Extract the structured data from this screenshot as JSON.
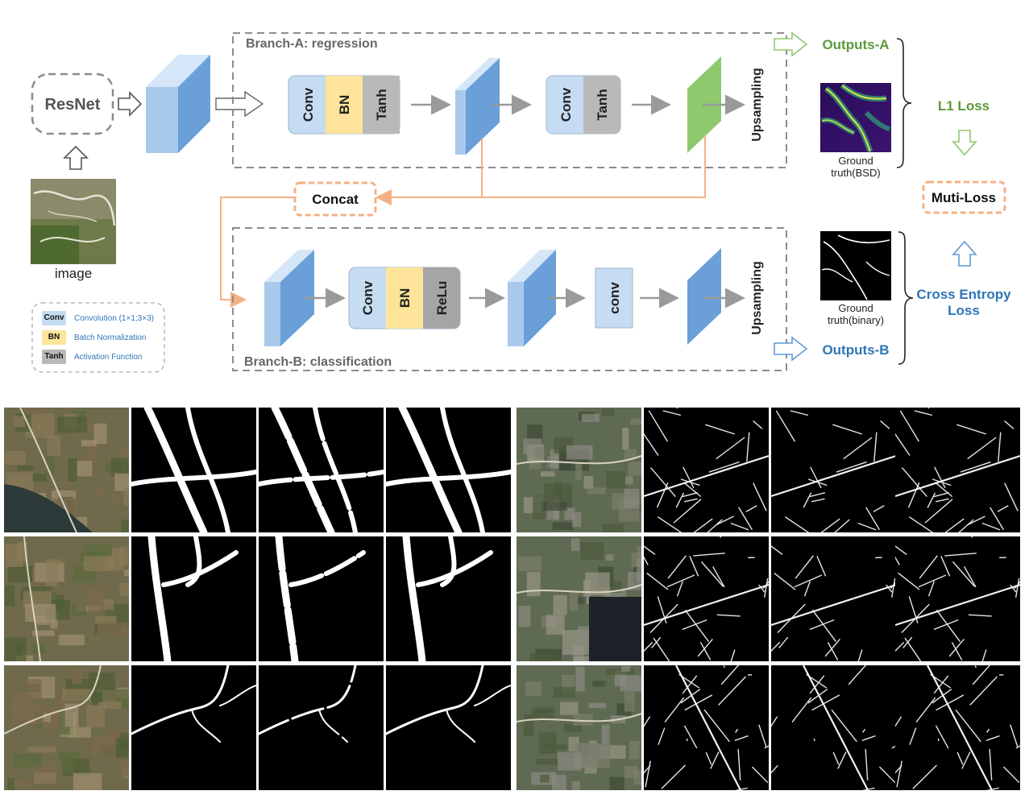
{
  "diagram": {
    "resnet_label": "ResNet",
    "image_label": "image",
    "branch_a_label": "Branch-A: regression",
    "branch_b_label": "Branch-B: classification",
    "concat_label": "Concat",
    "upsampling_label": "Upsampling",
    "outputs_a_label": "Outputs-A",
    "outputs_b_label": "Outputs-B",
    "gt_bsd_label_line1": "Ground",
    "gt_bsd_label_line2": "truth(BSD)",
    "gt_binary_label_line1": "Ground",
    "gt_binary_label_line2": "truth(binary)",
    "l1_loss_label": "L1 Loss",
    "muti_loss_label": "Muti-Loss",
    "ce_loss_label_line1": "Cross Entropy",
    "ce_loss_label_line2": "Loss",
    "conv_label": "Conv",
    "bn_label": "BN",
    "tanh_label": "Tanh",
    "relu_label": "ReLu",
    "conv_lower_label": "conv",
    "colors": {
      "conv_block": "#c5dcf2",
      "bn_block": "#fde49a",
      "act_block": "#b9b9b9",
      "feature_map": "#6b9fd8",
      "branch_a_output": "#8ec96e",
      "concat_orange": "#f4b183",
      "green_text": "#5b9a3c",
      "blue_text": "#2e75b6",
      "dashed_gray": "#8c8c8c"
    }
  },
  "legend": {
    "items": [
      {
        "tag": "Conv",
        "desc": "Convolution (1×1;3×3)",
        "color": "#c5dcf2"
      },
      {
        "tag": "BN",
        "desc": "Batch Normalization",
        "color": "#fde49a"
      },
      {
        "tag": "Tanh",
        "desc": "Activation Function",
        "color": "#b9b9b9"
      }
    ]
  },
  "results_grid": {
    "rows": 3,
    "groups_per_row": 2,
    "tiles_per_group": 4,
    "left_group_style": "thick mountain roads (white on black)",
    "right_group_style": "thin urban road network (white on black)"
  }
}
